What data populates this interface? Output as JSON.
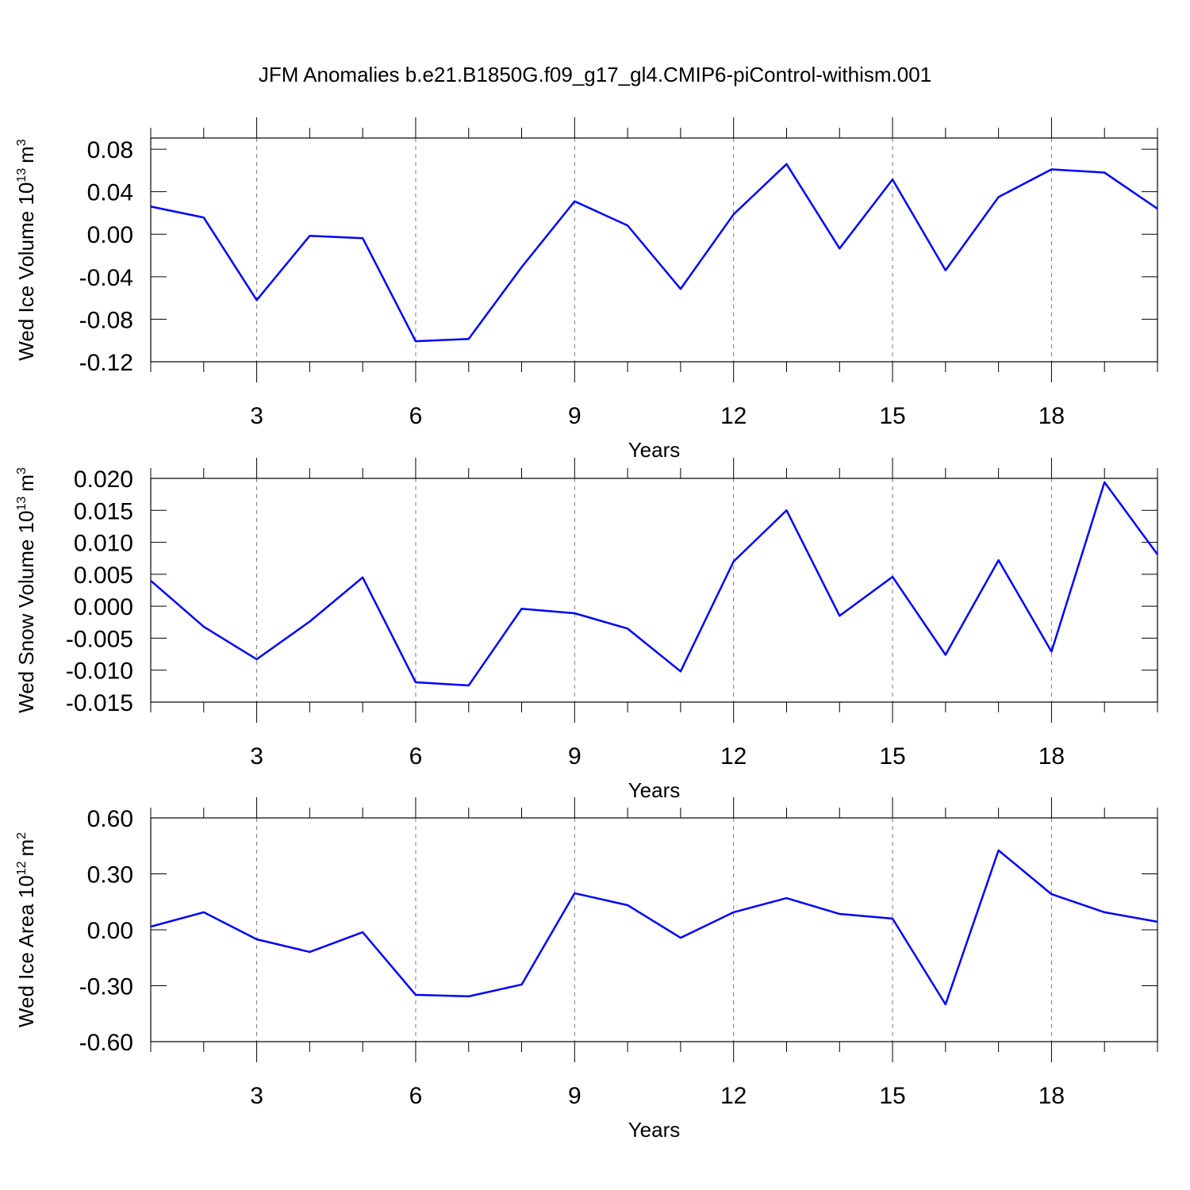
{
  "chart_data": [
    {
      "type": "line",
      "title": "JFM Anomalies b.e21.B1850G.f09_g17_gl4.CMIP6-piControl-withism.001",
      "xlabel": "Years",
      "ylabel": {
        "text": "Wed Ice Volume 10",
        "exponent": "13",
        "unit": "m",
        "unit_exponent": "3"
      },
      "x": [
        1,
        2,
        3,
        4,
        5,
        6,
        7,
        8,
        9,
        10,
        11,
        12,
        13,
        14,
        15,
        16,
        17,
        18,
        19,
        20
      ],
      "xlim": [
        1,
        20
      ],
      "xticks": [
        3,
        6,
        9,
        12,
        15,
        18
      ],
      "xminorticks": [
        1,
        2,
        4,
        5,
        7,
        8,
        10,
        11,
        13,
        14,
        16,
        17,
        19,
        20
      ],
      "ylim": [
        -0.12,
        0.0905
      ],
      "yticks": [
        -0.12,
        -0.08,
        -0.04,
        {
          "value": 0,
          "label": "0.00"
        },
        0.04,
        0.08
      ],
      "grid": "x",
      "series": [
        {
          "color": "#0000ff",
          "values": [
            0.026,
            0.0157,
            -0.062,
            -0.0015,
            -0.0037,
            -0.1007,
            -0.0985,
            -0.031,
            0.031,
            0.0082,
            -0.0515,
            0.0187,
            0.066,
            -0.0134,
            0.0515,
            -0.034,
            0.035,
            0.061,
            0.058,
            0.024
          ]
        }
      ]
    },
    {
      "type": "line",
      "xlabel": "Years",
      "ylabel": {
        "text": "Wed Snow Volume 10",
        "exponent": "13",
        "unit": "m",
        "unit_exponent": "3"
      },
      "x": [
        1,
        2,
        3,
        4,
        5,
        6,
        7,
        8,
        9,
        10,
        11,
        12,
        13,
        14,
        15,
        16,
        17,
        18,
        19,
        20
      ],
      "xlim": [
        1,
        20
      ],
      "xticks": [
        3,
        6,
        9,
        12,
        15,
        18
      ],
      "xminorticks": [
        1,
        2,
        4,
        5,
        7,
        8,
        10,
        11,
        13,
        14,
        16,
        17,
        19,
        20
      ],
      "ylim": [
        -0.015,
        0.02
      ],
      "yticks": [
        -0.015,
        {
          "value": -0.01,
          "label": "-0.010"
        },
        -0.005,
        {
          "value": 0,
          "label": "0.000"
        },
        0.005,
        {
          "value": 0.01,
          "label": "0.010"
        },
        0.015,
        {
          "value": 0.02,
          "label": "0.020"
        }
      ],
      "grid": "x",
      "series": [
        {
          "color": "#0000ff",
          "values": [
            0.004,
            -0.0032,
            -0.0083,
            -0.0024,
            0.0045,
            -0.0119,
            -0.0124,
            -0.0004,
            -0.0011,
            -0.0035,
            -0.0102,
            0.007,
            0.015,
            -0.0015,
            0.0046,
            -0.0076,
            0.0072,
            -0.0071,
            0.0194,
            0.0081
          ]
        }
      ]
    },
    {
      "type": "line",
      "xlabel": "Years",
      "ylabel": {
        "text": "Wed Ice Area 10",
        "exponent": "12",
        "unit": "m",
        "unit_exponent": "2"
      },
      "x": [
        1,
        2,
        3,
        4,
        5,
        6,
        7,
        8,
        9,
        10,
        11,
        12,
        13,
        14,
        15,
        16,
        17,
        18,
        19,
        20
      ],
      "xlim": [
        1,
        20
      ],
      "xticks": [
        3,
        6,
        9,
        12,
        15,
        18
      ],
      "xminorticks": [
        1,
        2,
        4,
        5,
        7,
        8,
        10,
        11,
        13,
        14,
        16,
        17,
        19,
        20
      ],
      "ylim": [
        -0.6,
        0.6
      ],
      "yticks": [
        {
          "value": -0.6,
          "label": "-0.60"
        },
        {
          "value": -0.3,
          "label": "-0.30"
        },
        {
          "value": 0,
          "label": "0.00"
        },
        {
          "value": 0.3,
          "label": "0.30"
        },
        {
          "value": 0.6,
          "label": "0.60"
        }
      ],
      "grid": "x",
      "series": [
        {
          "color": "#0000ff",
          "values": [
            0.017,
            0.094,
            -0.051,
            -0.119,
            -0.013,
            -0.349,
            -0.357,
            -0.294,
            0.196,
            0.132,
            -0.043,
            0.094,
            0.17,
            0.085,
            0.06,
            -0.4,
            0.426,
            0.191,
            0.094,
            0.043
          ]
        }
      ]
    }
  ]
}
